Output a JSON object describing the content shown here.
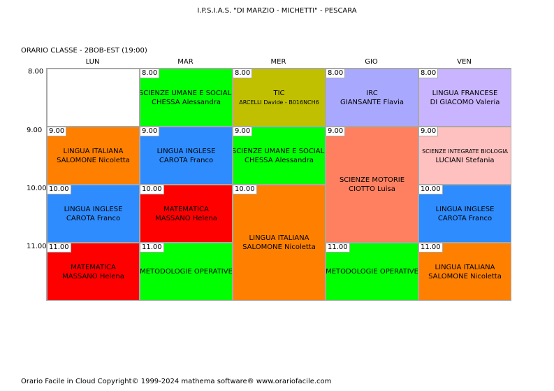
{
  "header": {
    "school": "I.P.S.I.A.S. \"DI MARZIO - MICHETTI\" - PESCARA",
    "class_title": "ORARIO CLASSE   -   2BOB-EST  (19:00)"
  },
  "days": [
    "LUN",
    "MAR",
    "MER",
    "GIO",
    "VEN"
  ],
  "hours": [
    "8.00",
    "9.00",
    "10.00",
    "11.00"
  ],
  "lessons": [
    {
      "day": 0,
      "start": 0,
      "span": 1,
      "time": "",
      "subject": "",
      "teacher": "",
      "color": "#ffffff"
    },
    {
      "day": 0,
      "start": 1,
      "span": 1,
      "time": "9.00",
      "subject": "LINGUA ITALIANA",
      "teacher": "SALOMONE Nicoletta",
      "color": "#ff8000"
    },
    {
      "day": 0,
      "start": 2,
      "span": 1,
      "time": "10.00",
      "subject": "LINGUA INGLESE",
      "teacher": "CAROTA Franco",
      "color": "#2e8cff"
    },
    {
      "day": 0,
      "start": 3,
      "span": 1,
      "time": "11.00",
      "subject": "MATEMATICA",
      "teacher": "MASSANO Helena",
      "color": "#ff0000"
    },
    {
      "day": 1,
      "start": 0,
      "span": 1,
      "time": "8.00",
      "subject": "SCIENZE UMANE E SOCIALI",
      "teacher": "CHESSA Alessandra",
      "color": "#00ff00"
    },
    {
      "day": 1,
      "start": 1,
      "span": 1,
      "time": "9.00",
      "subject": "LINGUA INGLESE",
      "teacher": "CAROTA Franco",
      "color": "#2e8cff"
    },
    {
      "day": 1,
      "start": 2,
      "span": 1,
      "time": "10.00",
      "subject": "MATEMATICA",
      "teacher": "MASSANO Helena",
      "color": "#ff0000"
    },
    {
      "day": 1,
      "start": 3,
      "span": 1,
      "time": "11.00",
      "subject": "METODOLOGIE OPERATIVE",
      "teacher": "",
      "color": "#00ff00"
    },
    {
      "day": 2,
      "start": 0,
      "span": 1,
      "time": "8.00",
      "subject": "TIC",
      "teacher": "ARCELLI Davide - B016NCH6",
      "teacher_small": true,
      "color": "#c0c000"
    },
    {
      "day": 2,
      "start": 1,
      "span": 1,
      "time": "9.00",
      "subject": "SCIENZE UMANE E SOCIALI",
      "teacher": "CHESSA Alessandra",
      "color": "#00ff00"
    },
    {
      "day": 2,
      "start": 2,
      "span": 2,
      "time": "10.00",
      "subject": "LINGUA ITALIANA",
      "teacher": "SALOMONE Nicoletta",
      "color": "#ff8000"
    },
    {
      "day": 3,
      "start": 0,
      "span": 1,
      "time": "8.00",
      "subject": "IRC",
      "teacher": "GIANSANTE Flavia",
      "color": "#a8a8ff"
    },
    {
      "day": 3,
      "start": 1,
      "span": 2,
      "time": "9.00",
      "subject": "SCIENZE MOTORIE",
      "teacher": "CIOTTO Luisa",
      "color": "#ff8060"
    },
    {
      "day": 3,
      "start": 3,
      "span": 1,
      "time": "11.00",
      "subject": "METODOLOGIE OPERATIVE",
      "teacher": "",
      "color": "#00ff00"
    },
    {
      "day": 4,
      "start": 0,
      "span": 1,
      "time": "8.00",
      "subject": "LINGUA FRANCESE",
      "teacher": "DI GIACOMO Valeria",
      "color": "#c8b4ff"
    },
    {
      "day": 4,
      "start": 1,
      "span": 1,
      "time": "9.00",
      "subject": "SCIENZE INTEGRATE  BIOLOGIA",
      "subject_small": true,
      "teacher": "LUCIANI Stefania",
      "color": "#ffc0c0"
    },
    {
      "day": 4,
      "start": 2,
      "span": 1,
      "time": "10.00",
      "subject": "LINGUA INGLESE",
      "teacher": "CAROTA Franco",
      "color": "#2e8cff"
    },
    {
      "day": 4,
      "start": 3,
      "span": 1,
      "time": "11.00",
      "subject": "LINGUA ITALIANA",
      "teacher": "SALOMONE Nicoletta",
      "color": "#ff8000"
    }
  ],
  "footer": "Orario Facile in Cloud  Copyright© 1999-2024 mathema software®     www.orariofacile.com"
}
